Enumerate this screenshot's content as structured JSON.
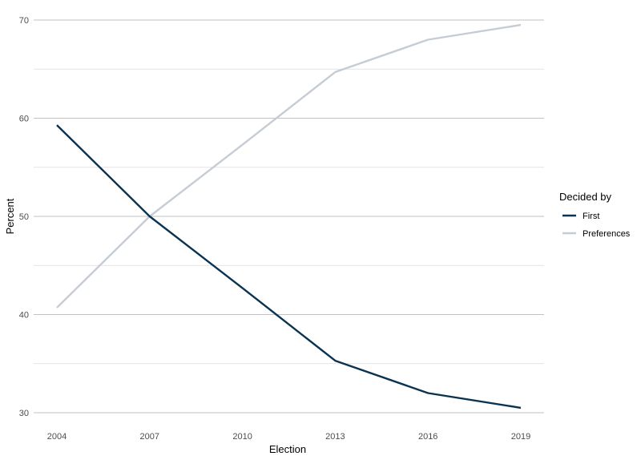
{
  "chart_data": {
    "type": "line",
    "title": "",
    "xlabel": "Election",
    "ylabel": "Percent",
    "x": [
      2004,
      2007,
      2010,
      2013,
      2016,
      2019
    ],
    "x_ticks": [
      "2004",
      "2007",
      "2010",
      "2013",
      "2016",
      "2019"
    ],
    "y_ticks": [
      "30",
      "40",
      "50",
      "60",
      "70"
    ],
    "y_tick_values": [
      30,
      40,
      50,
      60,
      70
    ],
    "ylim": [
      30,
      70
    ],
    "grid": true,
    "legend_title": "Decided by",
    "legend_position": "right",
    "series": [
      {
        "name": "First",
        "color": "#0b3350",
        "values": [
          59.3,
          50.0,
          42.7,
          35.3,
          32.0,
          30.5
        ]
      },
      {
        "name": "Preferences",
        "color": "#c5ccd3",
        "values": [
          40.7,
          50.0,
          57.3,
          64.7,
          68.0,
          69.5
        ]
      }
    ]
  }
}
